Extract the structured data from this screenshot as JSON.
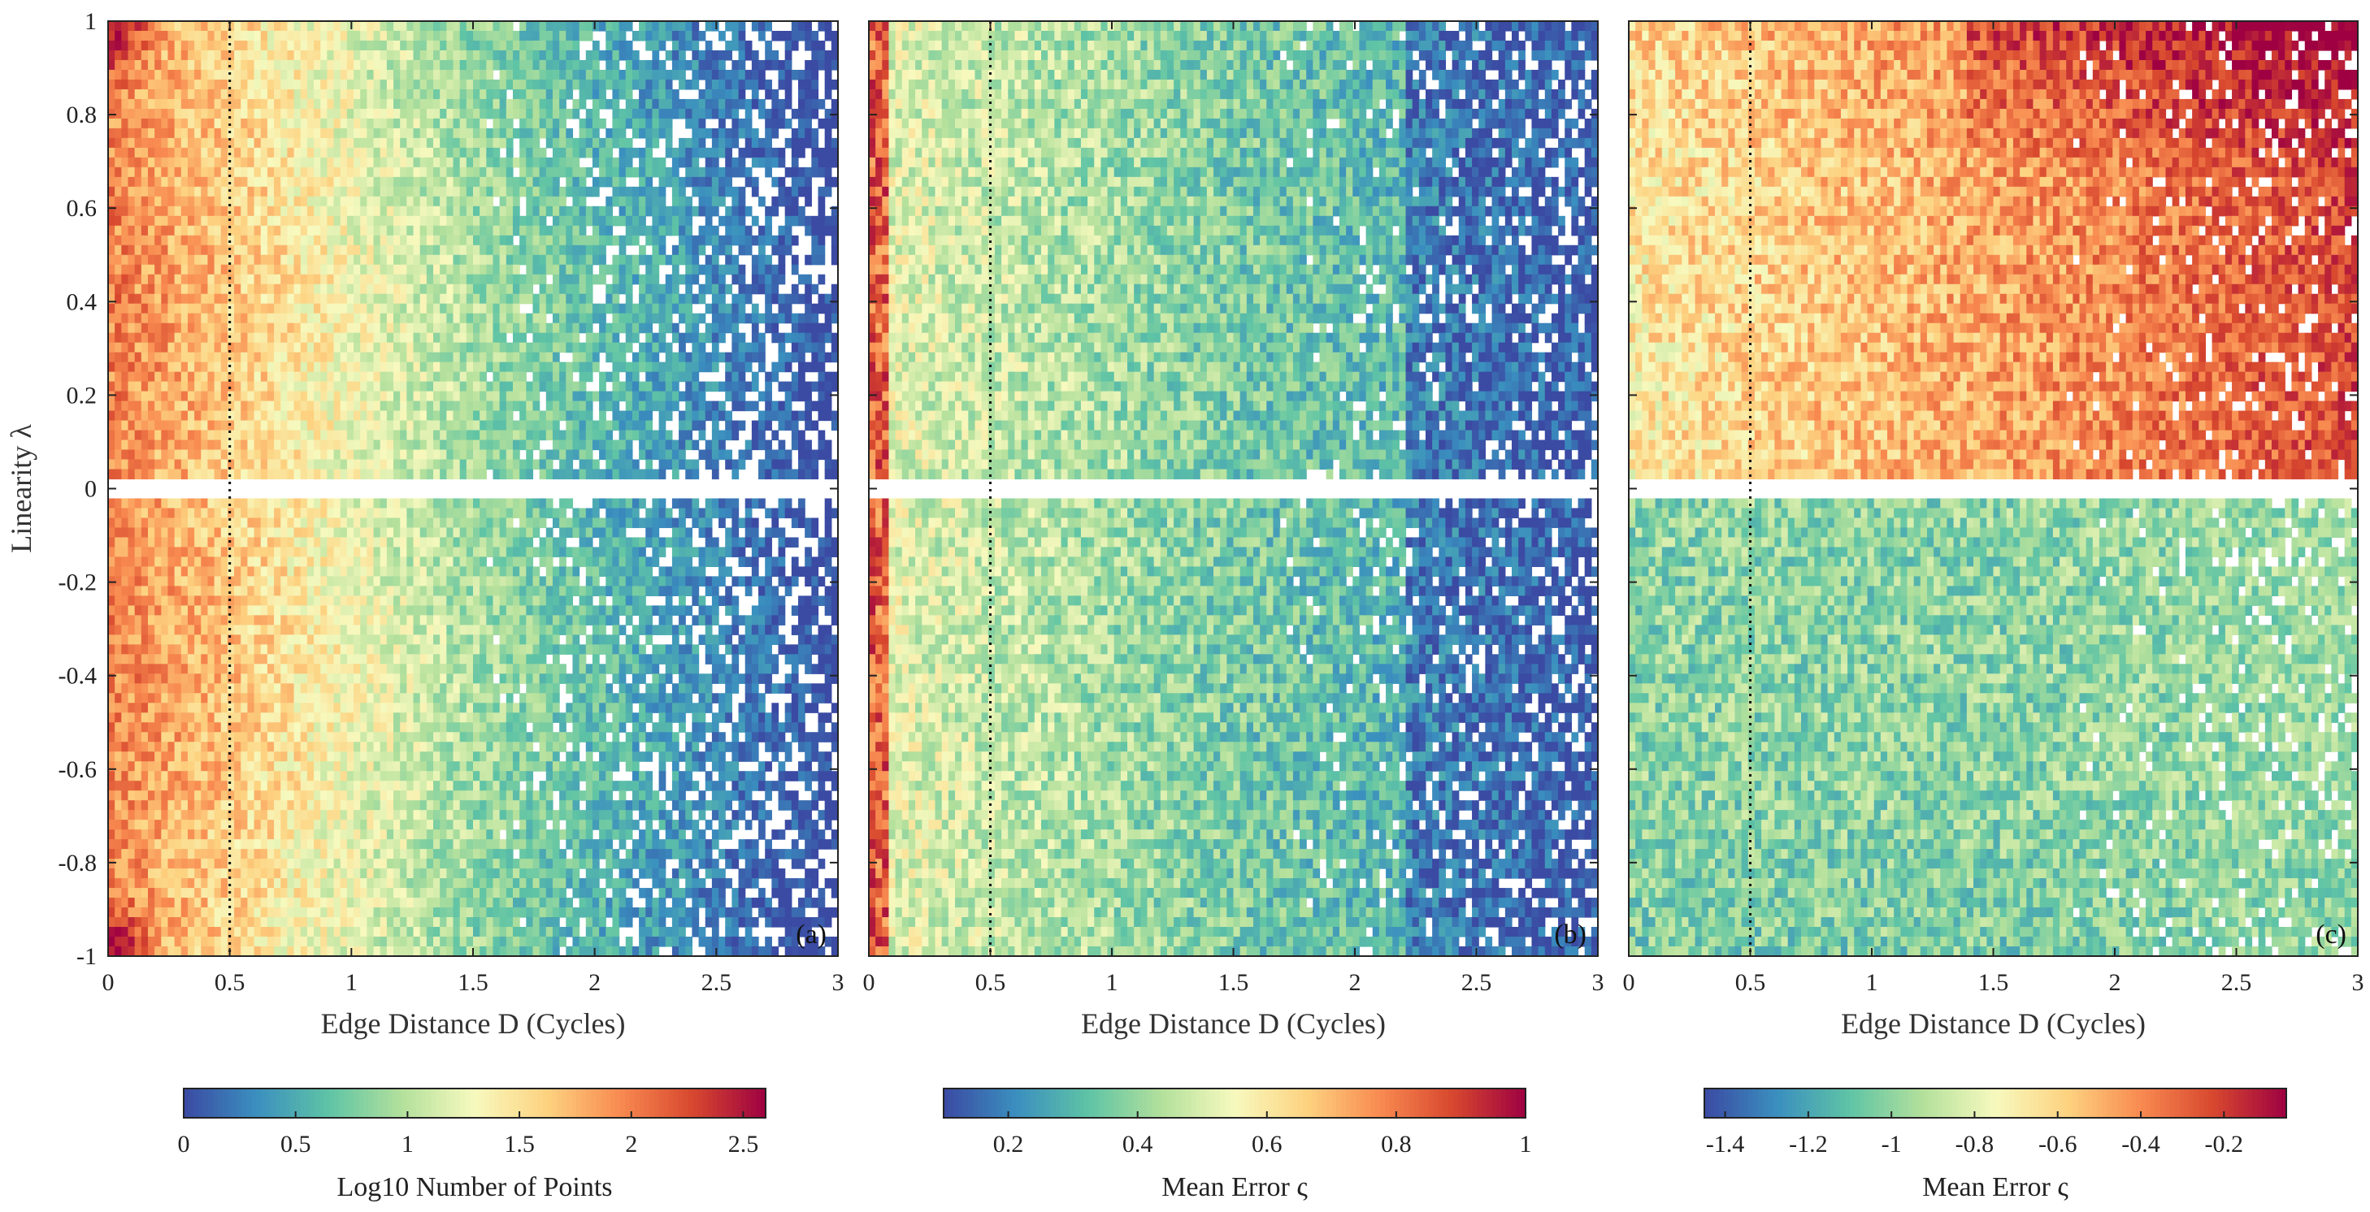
{
  "chart_data": [
    {
      "type": "heatmap",
      "panel_label": "(a)",
      "xlabel": "Edge Distance D (Cycles)",
      "ylabel": "Linearity λ",
      "xlim": [
        0,
        3
      ],
      "ylim": [
        -1,
        1
      ],
      "x_ticks": [
        "0",
        "0.5",
        "1",
        "1.5",
        "2",
        "2.5",
        "3"
      ],
      "y_ticks": [
        "1",
        "0.8",
        "0.6",
        "0.4",
        "0.2",
        "0",
        "-0.2",
        "-0.4",
        "-0.6",
        "-0.8",
        "-1"
      ],
      "reference_line_x": 0.5,
      "colorbar": {
        "label": "Log10 Number of Points",
        "range": [
          0,
          2.6
        ],
        "ticks": [
          "0",
          "0.5",
          "1",
          "1.5",
          "2",
          "2.5"
        ],
        "colormap": [
          "#3b4aa3",
          "#3a8fbf",
          "#5fc4a5",
          "#b3e09c",
          "#f7f9be",
          "#fdd280",
          "#f88a50",
          "#d7472e",
          "#9e0142"
        ]
      },
      "pattern": "counts"
    },
    {
      "type": "heatmap",
      "panel_label": "(b)",
      "xlabel": "Edge Distance D (Cycles)",
      "ylabel": "",
      "xlim": [
        0,
        3
      ],
      "ylim": [
        -1,
        1
      ],
      "x_ticks": [
        "0",
        "0.5",
        "1",
        "1.5",
        "2",
        "2.5",
        "3"
      ],
      "reference_line_x": 0.5,
      "colorbar": {
        "label": "Mean Error ς",
        "range": [
          0.1,
          1
        ],
        "ticks": [
          "0.2",
          "0.4",
          "0.6",
          "0.8",
          "1"
        ],
        "colormap": [
          "#3b4aa3",
          "#3a8fbf",
          "#5fc4a5",
          "#b3e09c",
          "#f7f9be",
          "#fdd280",
          "#f88a50",
          "#d7472e",
          "#9e0142"
        ]
      },
      "pattern": "error_b"
    },
    {
      "type": "heatmap",
      "panel_label": "(c)",
      "xlabel": "Edge Distance D (Cycles)",
      "ylabel": "",
      "xlim": [
        0,
        3
      ],
      "ylim": [
        -1,
        1
      ],
      "x_ticks": [
        "0",
        "0.5",
        "1",
        "1.5",
        "2",
        "2.5",
        "3"
      ],
      "reference_line_x": 0.5,
      "colorbar": {
        "label": "Mean Error ς",
        "range": [
          -1.45,
          -0.05
        ],
        "ticks": [
          "-1.4",
          "-1.2",
          "-1",
          "-0.8",
          "-0.6",
          "-0.4",
          "-0.2"
        ],
        "colormap": [
          "#3b4aa3",
          "#3a8fbf",
          "#5fc4a5",
          "#b3e09c",
          "#f7f9be",
          "#fdd280",
          "#f88a50",
          "#d7472e",
          "#9e0142"
        ]
      },
      "pattern": "error_c"
    }
  ]
}
